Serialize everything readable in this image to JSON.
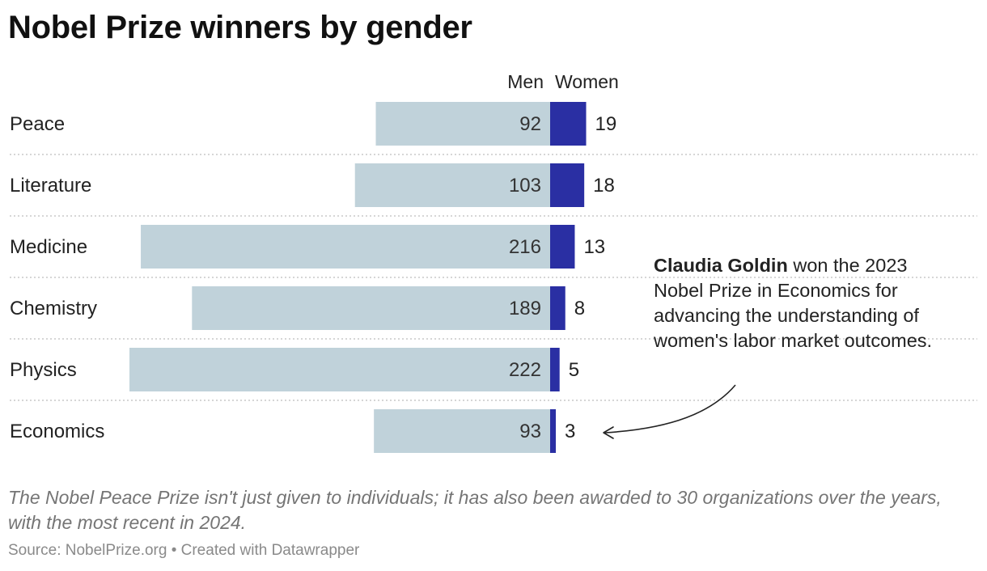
{
  "title": "Nobel Prize winners by gender",
  "chart_data": {
    "type": "bar",
    "subtype": "diverging-horizontal",
    "title": "Nobel Prize winners by gender",
    "categories": [
      "Peace",
      "Literature",
      "Medicine",
      "Chemistry",
      "Physics",
      "Economics"
    ],
    "series": [
      {
        "name": "Men",
        "color": "#c0d2da",
        "values": [
          92,
          103,
          216,
          189,
          222,
          93
        ]
      },
      {
        "name": "Women",
        "color": "#2a2fa3",
        "values": [
          19,
          18,
          13,
          8,
          5,
          3
        ]
      }
    ],
    "legend": [
      "Men",
      "Women"
    ],
    "legend_placement": "top-center",
    "xlim": [
      -222,
      222
    ]
  },
  "annotation": {
    "bold": "Claudia Goldin",
    "text": " won the 2023 Nobel Prize in Economics for advancing the understanding of women's labor market outcomes.",
    "target": "Economics"
  },
  "note": "The Nobel Peace Prize isn't just given to individuals; it has also been awarded to 30 organizations over the years, with the most recent in 2024.",
  "source": "Source: NobelPrize.org • Created with Datawrapper"
}
